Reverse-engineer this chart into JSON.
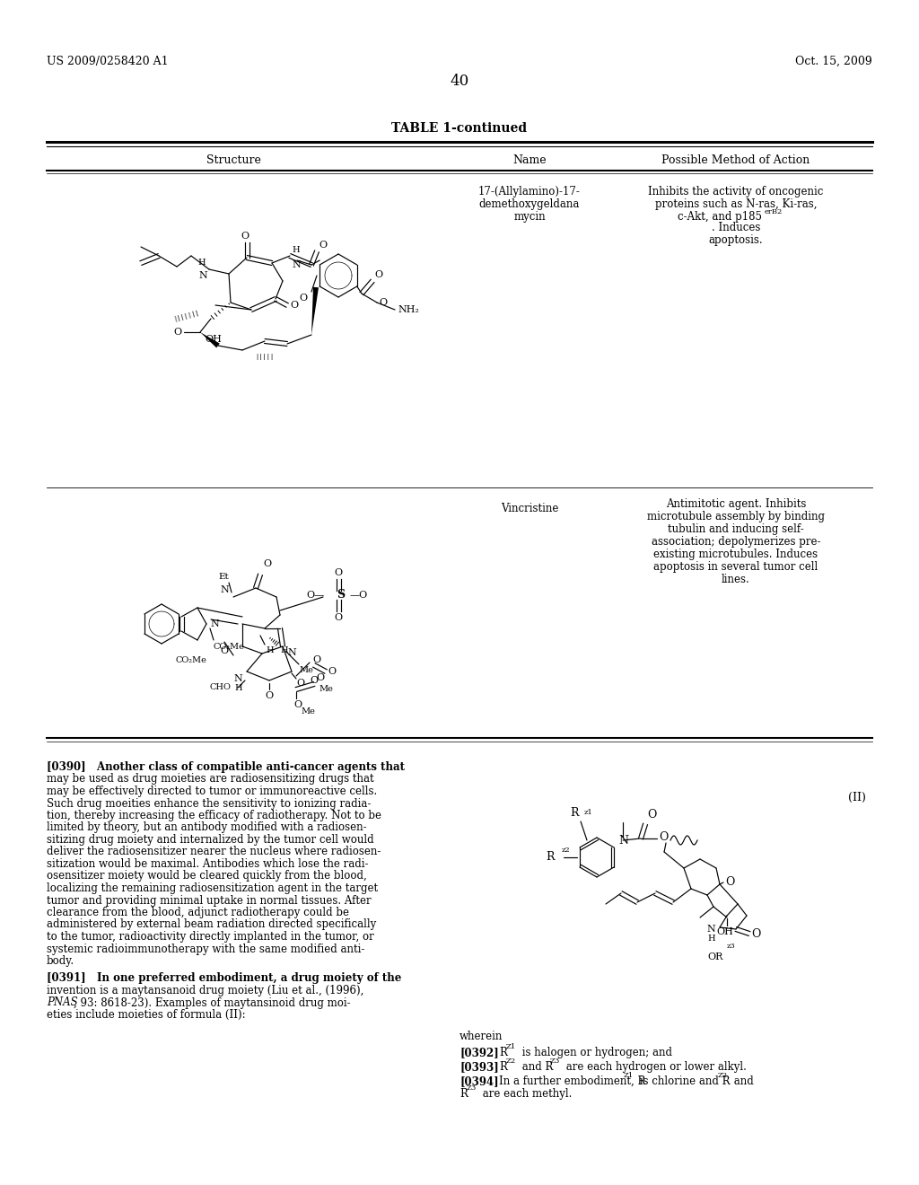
{
  "page_number": "40",
  "patent_number": "US 2009/0258420 A1",
  "patent_date": "Oct. 15, 2009",
  "table_title": "TABLE 1-continued",
  "col_headers": [
    "Structure",
    "Name",
    "Possible Method of Action"
  ],
  "row1_name_lines": [
    "17-(Allylamino)-17-",
    "demethoxygeldana",
    "mycin"
  ],
  "row1_action_lines": [
    "Inhibits the activity of oncogenic",
    "proteins such as N-ras, Ki-ras,",
    "c-Akt, and p185",
    ". Induces",
    "apoptosis."
  ],
  "row2_name_lines": [
    "Vincristine"
  ],
  "row2_action_lines": [
    "Antimitotic agent. Inhibits",
    "microtubule assembly by binding",
    "tubulin and inducing self-",
    "association; depolymerizes pre-",
    "existing microtubules. Induces",
    "apoptosis in several tumor cell",
    "lines."
  ],
  "formula_label": "(II)",
  "wherein_text": "wherein",
  "lines_390": [
    "[0390]   Another class of compatible anti-cancer agents that",
    "may be used as drug moieties are radiosensitizing drugs that",
    "may be effectively directed to tumor or immunoreactive cells.",
    "Such drug moeities enhance the sensitivity to ionizing radia-",
    "tion, thereby increasing the efficacy of radiotherapy. Not to be",
    "limited by theory, but an antibody modified with a radiosen-",
    "sitizing drug moiety and internalized by the tumor cell would",
    "deliver the radiosensitizer nearer the nucleus where radiosen-",
    "sitization would be maximal. Antibodies which lose the radi-",
    "osensitizer moiety would be cleared quickly from the blood,",
    "localizing the remaining radiosensitization agent in the target",
    "tumor and providing minimal uptake in normal tissues. After",
    "clearance from the blood, adjunct radiotherapy could be",
    "administered by external beam radiation directed specifically",
    "to the tumor, radioactivity directly implanted in the tumor, or",
    "systemic radioimmunotherapy with the same modified anti-",
    "body."
  ],
  "lines_391_a": "[0391]   In one preferred embodiment, a drug moiety of the",
  "lines_391_b": "invention is a maytansanoid drug moiety (Liu et al., (1996),",
  "lines_391_c_italic": "PNAS",
  "lines_391_c_rest": ", 93: 8618-23). Examples of maytansinoid drug moi-",
  "lines_391_d": "eties include moieties of formula (II):",
  "background_color": "#ffffff",
  "text_color": "#000000",
  "line_color": "#000000"
}
